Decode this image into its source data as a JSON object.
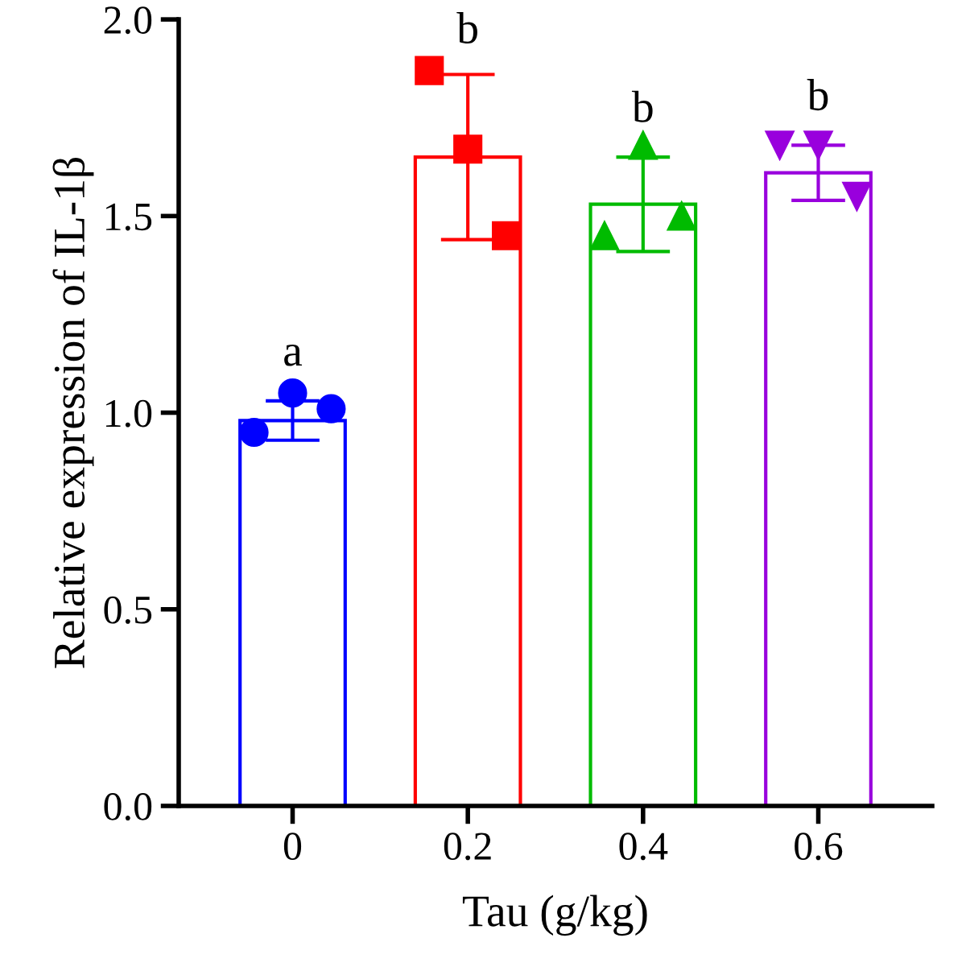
{
  "chart_data": {
    "type": "bar",
    "xlabel": "Tau (g/kg)",
    "ylabel": "Relative expression of IL-1β",
    "categories": [
      "0",
      "0.2",
      "0.4",
      "0.6"
    ],
    "series": [
      {
        "colors": [
          "#0000ff",
          "#ff0000",
          "#00bb00",
          "#9900dd"
        ],
        "values": [
          0.98,
          1.65,
          1.53,
          1.61
        ],
        "errors": [
          0.05,
          0.21,
          0.12,
          0.07
        ]
      },
      {
        "type": "scatter",
        "color": "#0000ff",
        "marker": "circle",
        "x": [
          "0",
          "0",
          "0"
        ],
        "values": [
          0.95,
          1.05,
          1.01
        ]
      },
      {
        "type": "scatter",
        "color": "#ff0000",
        "marker": "square",
        "x": [
          "0.2",
          "0.2",
          "0.2"
        ],
        "values": [
          1.87,
          1.67,
          1.45
        ]
      },
      {
        "type": "scatter",
        "color": "#00bb00",
        "marker": "triangle",
        "x": [
          "0.4",
          "0.4",
          "0.4"
        ],
        "values": [
          1.45,
          1.68,
          1.5
        ]
      },
      {
        "type": "scatter",
        "color": "#9900dd",
        "marker": "triangle_down",
        "x": [
          "0.6",
          "0.6",
          "0.6"
        ],
        "values": [
          1.68,
          1.68,
          1.55
        ]
      }
    ],
    "annotations": [
      {
        "text": "a",
        "x": "0",
        "y": 1.05
      },
      {
        "text": "b",
        "x": "0.2",
        "y": 1.87
      },
      {
        "text": "b",
        "x": "0.4",
        "y": 1.67
      },
      {
        "text": "b",
        "x": "0.6",
        "y": 1.7
      }
    ],
    "ylim": [
      0,
      2.0
    ],
    "yticks": [
      {
        "value": 0,
        "label": "0.0"
      },
      {
        "value": 0.5,
        "label": "0.5"
      },
      {
        "value": 1.0,
        "label": "1.0"
      },
      {
        "value": 1.5,
        "label": "1.5"
      },
      {
        "value": 2.0,
        "label": "2.0"
      }
    ],
    "grid": false
  }
}
